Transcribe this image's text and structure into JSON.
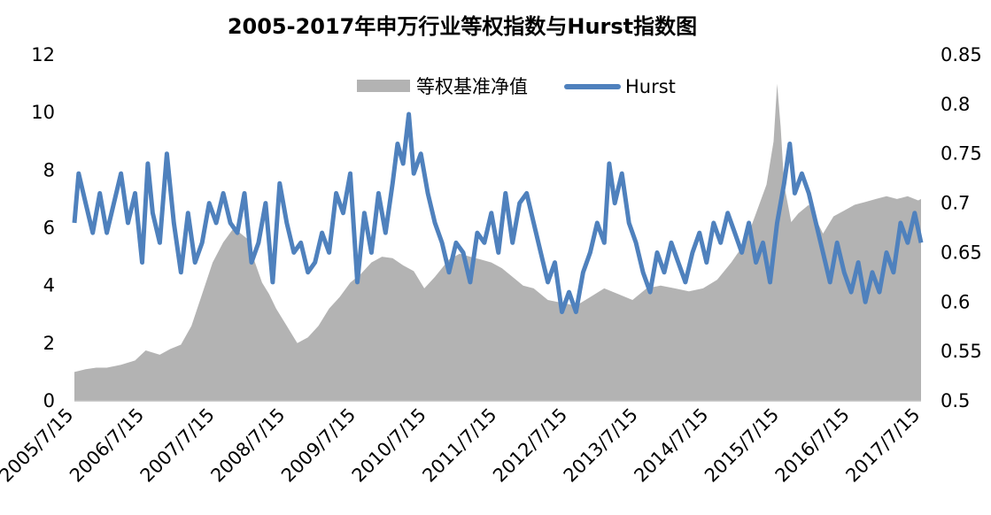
{
  "chart_data": {
    "type": "area+line",
    "title": "2005-2017年申万行业等权指数与Hurst指数图",
    "x_tick_labels": [
      "2005/7/15",
      "2006/7/15",
      "2007/7/15",
      "2008/7/15",
      "2009/7/15",
      "2010/7/15",
      "2011/7/15",
      "2012/7/15",
      "2013/7/15",
      "2014/7/15",
      "2015/7/15",
      "2016/7/15",
      "2017/7/15"
    ],
    "y_left": {
      "min": 0,
      "max": 12,
      "ticks": [
        "0",
        "2",
        "4",
        "6",
        "8",
        "10",
        "12"
      ]
    },
    "y_right": {
      "min": 0.5,
      "max": 0.85,
      "ticks": [
        "0.5",
        "0.55",
        "0.6",
        "0.65",
        "0.7",
        "0.75",
        "0.8",
        "0.85"
      ]
    },
    "legend": {
      "position": "top-center",
      "entries": [
        "等权基准净值",
        "Hurst"
      ]
    },
    "grid": false,
    "series": [
      {
        "name": "等权基准净值",
        "type": "area",
        "axis": "left",
        "color": "#b3b3b3",
        "points": [
          [
            2005.54,
            1.0
          ],
          [
            2005.7,
            1.1
          ],
          [
            2005.85,
            1.15
          ],
          [
            2006.0,
            1.15
          ],
          [
            2006.2,
            1.25
          ],
          [
            2006.4,
            1.4
          ],
          [
            2006.55,
            1.75
          ],
          [
            2006.75,
            1.6
          ],
          [
            2006.9,
            1.8
          ],
          [
            2007.05,
            1.95
          ],
          [
            2007.2,
            2.6
          ],
          [
            2007.35,
            3.7
          ],
          [
            2007.5,
            4.8
          ],
          [
            2007.65,
            5.5
          ],
          [
            2007.8,
            6.0
          ],
          [
            2007.9,
            5.8
          ],
          [
            2008.0,
            5.6
          ],
          [
            2008.1,
            4.8
          ],
          [
            2008.2,
            4.1
          ],
          [
            2008.3,
            3.7
          ],
          [
            2008.4,
            3.2
          ],
          [
            2008.55,
            2.6
          ],
          [
            2008.7,
            2.0
          ],
          [
            2008.85,
            2.2
          ],
          [
            2009.0,
            2.6
          ],
          [
            2009.15,
            3.2
          ],
          [
            2009.3,
            3.6
          ],
          [
            2009.45,
            4.1
          ],
          [
            2009.6,
            4.4
          ],
          [
            2009.75,
            4.8
          ],
          [
            2009.9,
            5.0
          ],
          [
            2010.05,
            4.95
          ],
          [
            2010.2,
            4.7
          ],
          [
            2010.35,
            4.5
          ],
          [
            2010.5,
            3.9
          ],
          [
            2010.65,
            4.3
          ],
          [
            2010.85,
            4.9
          ],
          [
            2011.0,
            5.1
          ],
          [
            2011.15,
            5.0
          ],
          [
            2011.3,
            4.9
          ],
          [
            2011.45,
            4.8
          ],
          [
            2011.6,
            4.6
          ],
          [
            2011.75,
            4.3
          ],
          [
            2011.9,
            4.0
          ],
          [
            2012.05,
            3.9
          ],
          [
            2012.25,
            3.5
          ],
          [
            2012.45,
            3.4
          ],
          [
            2012.65,
            3.3
          ],
          [
            2012.85,
            3.6
          ],
          [
            2013.05,
            3.9
          ],
          [
            2013.25,
            3.7
          ],
          [
            2013.45,
            3.5
          ],
          [
            2013.65,
            3.9
          ],
          [
            2013.85,
            4.0
          ],
          [
            2014.05,
            3.9
          ],
          [
            2014.25,
            3.8
          ],
          [
            2014.45,
            3.9
          ],
          [
            2014.65,
            4.2
          ],
          [
            2014.85,
            4.8
          ],
          [
            2015.05,
            5.5
          ],
          [
            2015.2,
            6.5
          ],
          [
            2015.35,
            7.5
          ],
          [
            2015.45,
            9.0
          ],
          [
            2015.5,
            11.0
          ],
          [
            2015.55,
            9.5
          ],
          [
            2015.6,
            7.5
          ],
          [
            2015.7,
            6.2
          ],
          [
            2015.8,
            6.5
          ],
          [
            2015.95,
            6.8
          ],
          [
            2016.05,
            6.3
          ],
          [
            2016.15,
            5.8
          ],
          [
            2016.3,
            6.4
          ],
          [
            2016.45,
            6.6
          ],
          [
            2016.6,
            6.8
          ],
          [
            2016.75,
            6.9
          ],
          [
            2016.9,
            7.0
          ],
          [
            2017.05,
            7.1
          ],
          [
            2017.2,
            7.0
          ],
          [
            2017.35,
            7.1
          ],
          [
            2017.5,
            6.95
          ],
          [
            2017.54,
            7.0
          ]
        ]
      },
      {
        "name": "Hurst",
        "type": "line",
        "axis": "right",
        "color": "#4f81bd",
        "points": [
          [
            2005.54,
            0.68
          ],
          [
            2005.6,
            0.73
          ],
          [
            2005.7,
            0.7
          ],
          [
            2005.8,
            0.67
          ],
          [
            2005.9,
            0.71
          ],
          [
            2006.0,
            0.67
          ],
          [
            2006.1,
            0.7
          ],
          [
            2006.2,
            0.73
          ],
          [
            2006.3,
            0.68
          ],
          [
            2006.4,
            0.71
          ],
          [
            2006.5,
            0.64
          ],
          [
            2006.58,
            0.74
          ],
          [
            2006.65,
            0.69
          ],
          [
            2006.75,
            0.66
          ],
          [
            2006.85,
            0.75
          ],
          [
            2006.95,
            0.68
          ],
          [
            2007.05,
            0.63
          ],
          [
            2007.15,
            0.69
          ],
          [
            2007.25,
            0.64
          ],
          [
            2007.35,
            0.66
          ],
          [
            2007.45,
            0.7
          ],
          [
            2007.55,
            0.68
          ],
          [
            2007.65,
            0.71
          ],
          [
            2007.75,
            0.68
          ],
          [
            2007.85,
            0.67
          ],
          [
            2007.95,
            0.71
          ],
          [
            2008.05,
            0.64
          ],
          [
            2008.15,
            0.66
          ],
          [
            2008.25,
            0.7
          ],
          [
            2008.35,
            0.62
          ],
          [
            2008.45,
            0.72
          ],
          [
            2008.55,
            0.68
          ],
          [
            2008.65,
            0.65
          ],
          [
            2008.75,
            0.66
          ],
          [
            2008.85,
            0.63
          ],
          [
            2008.95,
            0.64
          ],
          [
            2009.05,
            0.67
          ],
          [
            2009.15,
            0.65
          ],
          [
            2009.25,
            0.71
          ],
          [
            2009.35,
            0.69
          ],
          [
            2009.45,
            0.73
          ],
          [
            2009.55,
            0.62
          ],
          [
            2009.65,
            0.69
          ],
          [
            2009.75,
            0.65
          ],
          [
            2009.85,
            0.71
          ],
          [
            2009.95,
            0.67
          ],
          [
            2010.05,
            0.72
          ],
          [
            2010.12,
            0.76
          ],
          [
            2010.2,
            0.74
          ],
          [
            2010.28,
            0.79
          ],
          [
            2010.35,
            0.73
          ],
          [
            2010.45,
            0.75
          ],
          [
            2010.55,
            0.71
          ],
          [
            2010.65,
            0.68
          ],
          [
            2010.75,
            0.66
          ],
          [
            2010.85,
            0.63
          ],
          [
            2010.95,
            0.66
          ],
          [
            2011.05,
            0.65
          ],
          [
            2011.15,
            0.62
          ],
          [
            2011.25,
            0.67
          ],
          [
            2011.35,
            0.66
          ],
          [
            2011.45,
            0.69
          ],
          [
            2011.55,
            0.65
          ],
          [
            2011.65,
            0.71
          ],
          [
            2011.75,
            0.66
          ],
          [
            2011.85,
            0.7
          ],
          [
            2011.95,
            0.71
          ],
          [
            2012.05,
            0.68
          ],
          [
            2012.15,
            0.65
          ],
          [
            2012.25,
            0.62
          ],
          [
            2012.35,
            0.64
          ],
          [
            2012.45,
            0.59
          ],
          [
            2012.55,
            0.61
          ],
          [
            2012.65,
            0.59
          ],
          [
            2012.75,
            0.63
          ],
          [
            2012.85,
            0.65
          ],
          [
            2012.95,
            0.68
          ],
          [
            2013.05,
            0.66
          ],
          [
            2013.12,
            0.74
          ],
          [
            2013.2,
            0.7
          ],
          [
            2013.3,
            0.73
          ],
          [
            2013.4,
            0.68
          ],
          [
            2013.5,
            0.66
          ],
          [
            2013.6,
            0.63
          ],
          [
            2013.7,
            0.61
          ],
          [
            2013.8,
            0.65
          ],
          [
            2013.9,
            0.63
          ],
          [
            2014.0,
            0.66
          ],
          [
            2014.1,
            0.64
          ],
          [
            2014.2,
            0.62
          ],
          [
            2014.3,
            0.65
          ],
          [
            2014.4,
            0.67
          ],
          [
            2014.5,
            0.64
          ],
          [
            2014.6,
            0.68
          ],
          [
            2014.7,
            0.66
          ],
          [
            2014.8,
            0.69
          ],
          [
            2014.9,
            0.67
          ],
          [
            2015.0,
            0.65
          ],
          [
            2015.1,
            0.68
          ],
          [
            2015.2,
            0.64
          ],
          [
            2015.3,
            0.66
          ],
          [
            2015.4,
            0.62
          ],
          [
            2015.5,
            0.68
          ],
          [
            2015.6,
            0.72
          ],
          [
            2015.68,
            0.76
          ],
          [
            2015.75,
            0.71
          ],
          [
            2015.85,
            0.73
          ],
          [
            2015.95,
            0.71
          ],
          [
            2016.05,
            0.68
          ],
          [
            2016.15,
            0.65
          ],
          [
            2016.25,
            0.62
          ],
          [
            2016.35,
            0.66
          ],
          [
            2016.45,
            0.63
          ],
          [
            2016.55,
            0.61
          ],
          [
            2016.65,
            0.64
          ],
          [
            2016.75,
            0.6
          ],
          [
            2016.85,
            0.63
          ],
          [
            2016.95,
            0.61
          ],
          [
            2017.05,
            0.65
          ],
          [
            2017.15,
            0.63
          ],
          [
            2017.25,
            0.68
          ],
          [
            2017.35,
            0.66
          ],
          [
            2017.45,
            0.69
          ],
          [
            2017.54,
            0.66
          ]
        ]
      }
    ]
  }
}
